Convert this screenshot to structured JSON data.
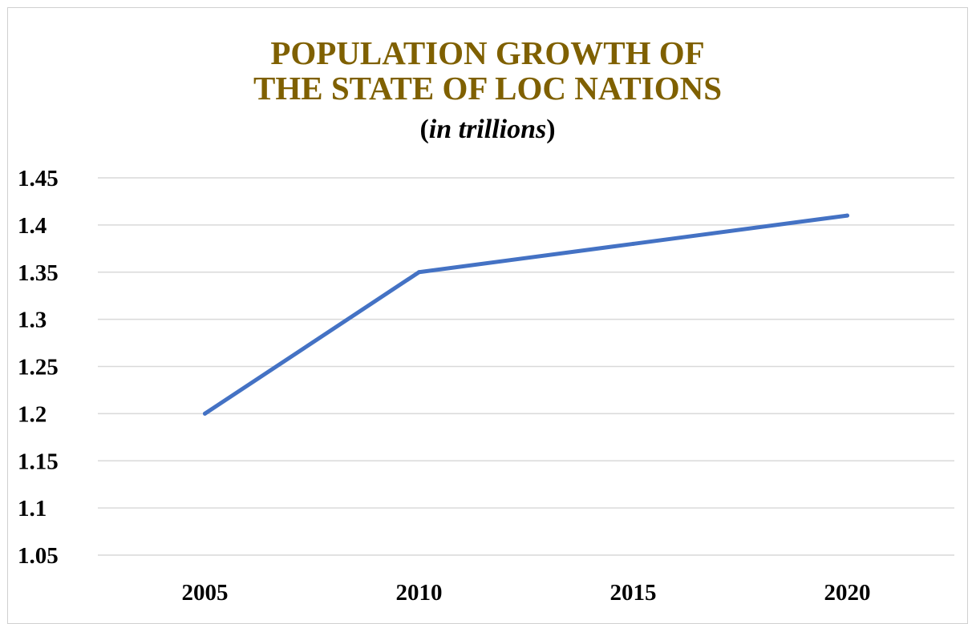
{
  "colors": {
    "title": "#7F6000",
    "series": "#4472C4",
    "grid": "#D9D9D9"
  },
  "chart_data": {
    "type": "line",
    "title": "POPULATION GROWTH OF THE STATE OF LOC NATIONS",
    "title_lines": [
      "POPULATION GROWTH OF",
      "THE STATE OF LOC NATIONS"
    ],
    "subtitle_open": "(",
    "subtitle_italic": "in trillions",
    "subtitle_close": ")",
    "xlabel": "",
    "ylabel": "",
    "categories": [
      "2005",
      "2010",
      "2015",
      "2020"
    ],
    "series": [
      {
        "values": [
          1.2,
          1.35,
          1.38,
          1.41
        ]
      }
    ],
    "ylim": [
      1.05,
      1.45
    ],
    "y_ticks": [
      1.05,
      1.1,
      1.15,
      1.2,
      1.25,
      1.3,
      1.35,
      1.4,
      1.45
    ],
    "y_tick_labels": [
      "1.05",
      "1.1",
      "1.15",
      "1.2",
      "1.25",
      "1.3",
      "1.35",
      "1.4",
      "1.45"
    ],
    "grid": true,
    "legend": "none"
  }
}
